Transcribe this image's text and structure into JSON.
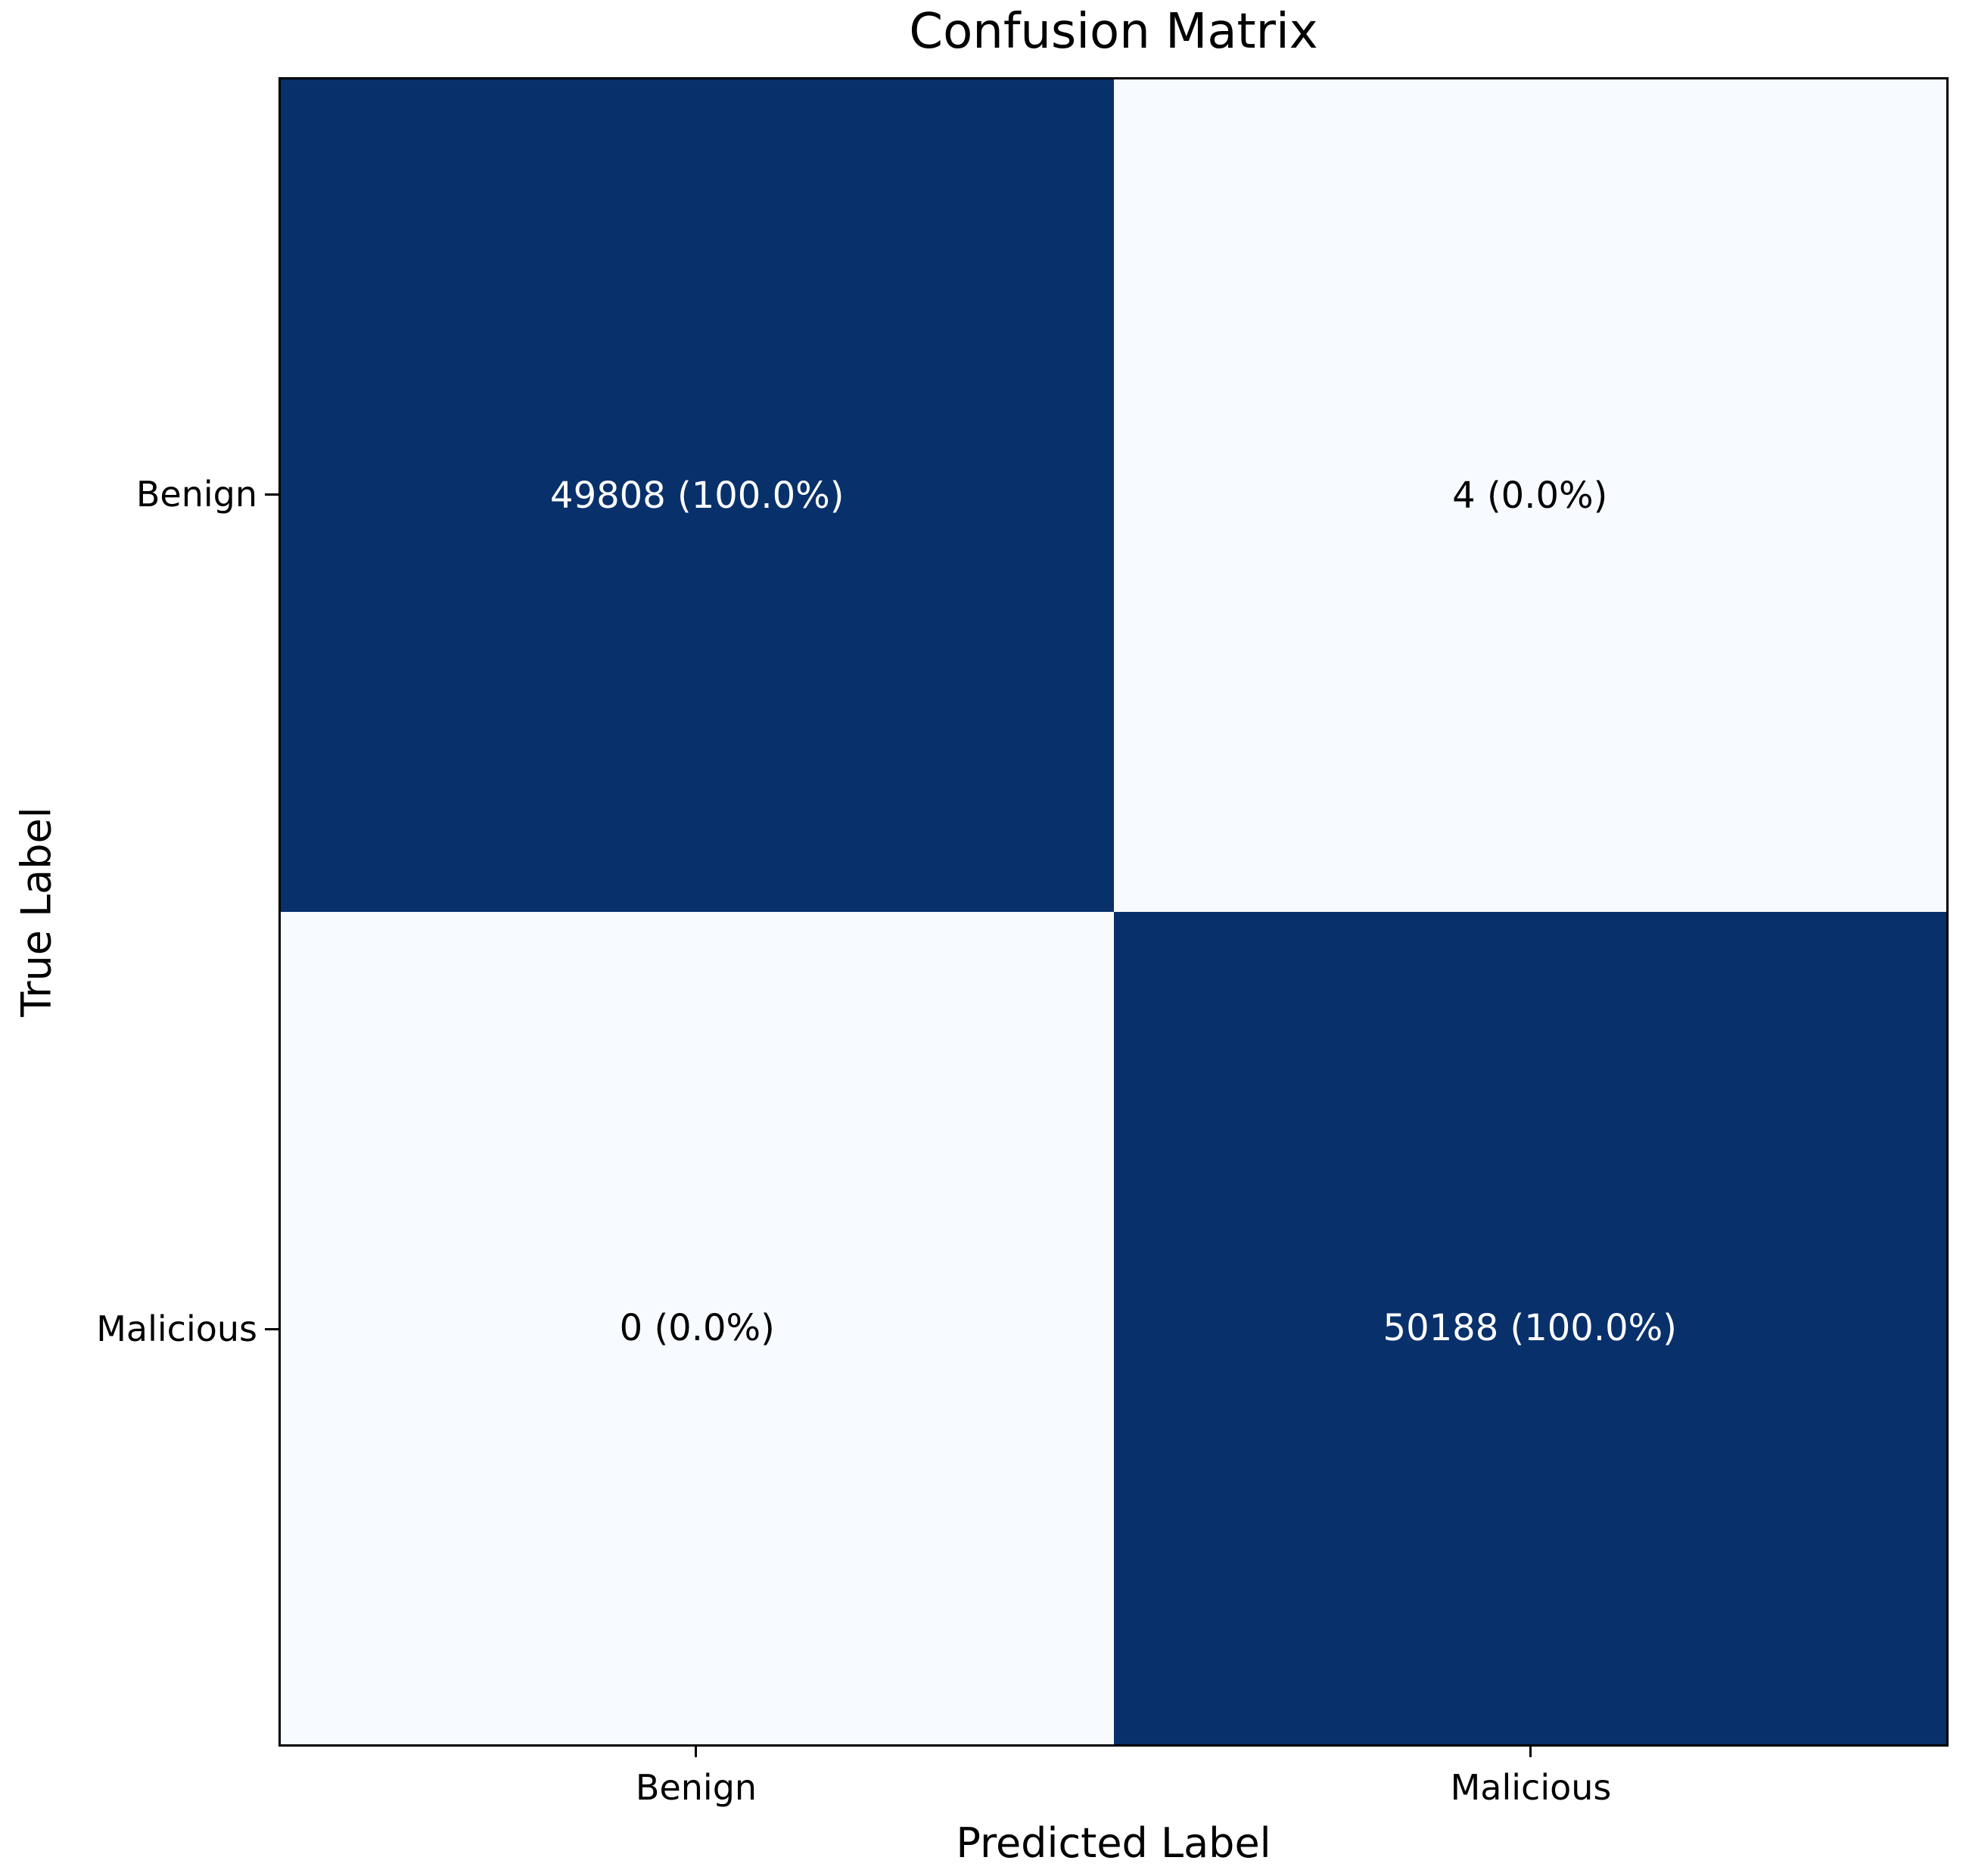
{
  "title": "Confusion Matrix",
  "axes": {
    "xlabel": "Predicted Label",
    "ylabel": "True Label",
    "x_ticks": [
      "Benign",
      "Malicious"
    ],
    "y_ticks": [
      "Benign",
      "Malicious"
    ]
  },
  "colors": {
    "dark_cell": "#08306b",
    "light_cell": "#f7fbff",
    "dark_cell_text": "#ffffff",
    "light_cell_text": "#000000",
    "axis": "#000000",
    "background": "#ffffff"
  },
  "chart_data": {
    "type": "heatmap",
    "title": "Confusion Matrix",
    "xlabel": "Predicted Label",
    "ylabel": "True Label",
    "x_categories": [
      "Benign",
      "Malicious"
    ],
    "y_categories": [
      "Benign",
      "Malicious"
    ],
    "values": [
      [
        49808,
        4
      ],
      [
        0,
        50188
      ]
    ],
    "row_percentages": [
      [
        100.0,
        0.0
      ],
      [
        0.0,
        100.0
      ]
    ],
    "cell_labels": [
      [
        "49808 (100.0%)",
        "4 (0.0%)"
      ],
      [
        "0 (0.0%)",
        "50188 (100.0%)"
      ]
    ],
    "colormap": "Blues",
    "legend": "none",
    "grid": false
  }
}
